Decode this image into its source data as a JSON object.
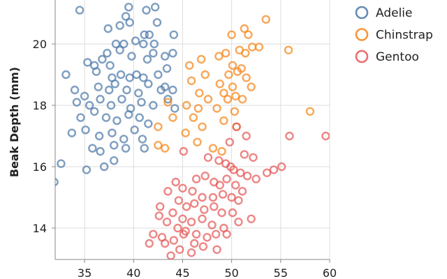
{
  "chart_data": {
    "type": "scatter",
    "title": "",
    "xlabel": "",
    "ylabel": "Beak Depth (mm)",
    "xlim": [
      32,
      60
    ],
    "ylim": [
      13,
      22
    ],
    "x_ticks": [
      35,
      40,
      45,
      50,
      55,
      60
    ],
    "y_ticks": [
      14,
      16,
      18,
      20
    ],
    "grid": true,
    "legend_position": "top-right",
    "series": [
      {
        "name": "Adelie",
        "color": "#4c78a8",
        "points": [
          [
            34.5,
            21.1
          ],
          [
            39.5,
            21.2
          ],
          [
            39.2,
            20.9
          ],
          [
            41.3,
            21.1
          ],
          [
            42.2,
            21.2
          ],
          [
            45.4,
            21.6
          ],
          [
            38.6,
            20.6
          ],
          [
            39.6,
            20.7
          ],
          [
            42.4,
            20.7
          ],
          [
            37.4,
            20.5
          ],
          [
            41.1,
            20.3
          ],
          [
            41.6,
            20.3
          ],
          [
            40.2,
            20.1
          ],
          [
            44.1,
            20.3
          ],
          [
            38.2,
            20.0
          ],
          [
            39.0,
            20.0
          ],
          [
            41.0,
            20.0
          ],
          [
            42.1,
            20.0
          ],
          [
            35.3,
            19.4
          ],
          [
            36.8,
            19.5
          ],
          [
            37.3,
            19.7
          ],
          [
            38.6,
            19.8
          ],
          [
            39.8,
            19.6
          ],
          [
            41.4,
            19.5
          ],
          [
            42.0,
            19.7
          ],
          [
            43.2,
            19.6
          ],
          [
            44.0,
            19.7
          ],
          [
            36.0,
            19.3
          ],
          [
            37.6,
            19.3
          ],
          [
            36.2,
            19.1
          ],
          [
            37.8,
            18.9
          ],
          [
            38.7,
            19.0
          ],
          [
            39.6,
            18.9
          ],
          [
            40.3,
            19.0
          ],
          [
            41.0,
            18.9
          ],
          [
            42.5,
            19.0
          ],
          [
            43.4,
            19.2
          ],
          [
            33.1,
            19.0
          ],
          [
            34.0,
            18.5
          ],
          [
            35.0,
            18.3
          ],
          [
            36.4,
            18.6
          ],
          [
            37.5,
            18.5
          ],
          [
            38.1,
            18.7
          ],
          [
            39.3,
            18.5
          ],
          [
            40.5,
            18.4
          ],
          [
            41.5,
            18.7
          ],
          [
            42.8,
            18.5
          ],
          [
            43.2,
            18.6
          ],
          [
            44.0,
            18.5
          ],
          [
            34.2,
            18.1
          ],
          [
            35.5,
            18.0
          ],
          [
            36.6,
            18.2
          ],
          [
            37.7,
            18.0
          ],
          [
            38.8,
            18.2
          ],
          [
            39.7,
            17.9
          ],
          [
            40.8,
            18.1
          ],
          [
            42.0,
            18.0
          ],
          [
            43.5,
            18.2
          ],
          [
            44.2,
            17.9
          ],
          [
            34.6,
            17.6
          ],
          [
            36.0,
            17.8
          ],
          [
            37.2,
            17.6
          ],
          [
            38.3,
            17.5
          ],
          [
            39.5,
            17.7
          ],
          [
            40.6,
            17.6
          ],
          [
            41.5,
            17.4
          ],
          [
            33.7,
            17.1
          ],
          [
            35.1,
            17.2
          ],
          [
            36.5,
            17.0
          ],
          [
            37.8,
            17.1
          ],
          [
            39.0,
            16.9
          ],
          [
            40.1,
            17.2
          ],
          [
            35.8,
            16.6
          ],
          [
            36.6,
            16.5
          ],
          [
            38.0,
            16.7
          ],
          [
            39.2,
            16.6
          ],
          [
            40.9,
            16.9
          ],
          [
            41.1,
            16.6
          ],
          [
            38.0,
            16.2
          ],
          [
            35.2,
            15.9
          ],
          [
            32.6,
            16.1
          ],
          [
            37.0,
            16.0
          ],
          [
            31.9,
            15.5
          ]
        ]
      },
      {
        "name": "Chinstrap",
        "color": "#f58518",
        "points": [
          [
            51.3,
            20.5
          ],
          [
            53.5,
            20.8
          ],
          [
            50.0,
            20.3
          ],
          [
            51.7,
            20.3
          ],
          [
            52.1,
            19.9
          ],
          [
            52.8,
            19.9
          ],
          [
            55.8,
            19.8
          ],
          [
            49.4,
            19.7
          ],
          [
            50.8,
            19.8
          ],
          [
            46.9,
            19.5
          ],
          [
            48.7,
            19.6
          ],
          [
            51.4,
            19.7
          ],
          [
            45.7,
            19.3
          ],
          [
            50.1,
            19.3
          ],
          [
            51.0,
            19.2
          ],
          [
            47.3,
            19.0
          ],
          [
            49.7,
            19.0
          ],
          [
            50.6,
            19.1
          ],
          [
            51.5,
            18.9
          ],
          [
            45.9,
            18.8
          ],
          [
            48.8,
            18.7
          ],
          [
            50.1,
            18.6
          ],
          [
            52.0,
            18.6
          ],
          [
            46.7,
            18.4
          ],
          [
            49.2,
            18.4
          ],
          [
            50.4,
            18.3
          ],
          [
            51.1,
            18.2
          ],
          [
            47.6,
            18.2
          ],
          [
            49.6,
            18.2
          ],
          [
            43.5,
            18.1
          ],
          [
            45.4,
            18.0
          ],
          [
            46.6,
            17.9
          ],
          [
            48.5,
            17.9
          ],
          [
            50.3,
            17.8
          ],
          [
            58.0,
            17.8
          ],
          [
            44.0,
            17.6
          ],
          [
            46.1,
            17.6
          ],
          [
            49.2,
            17.5
          ],
          [
            42.5,
            17.3
          ],
          [
            47.0,
            17.3
          ],
          [
            50.5,
            17.3
          ],
          [
            45.3,
            17.1
          ],
          [
            46.5,
            16.8
          ],
          [
            48.1,
            16.6
          ],
          [
            49.0,
            16.5
          ],
          [
            43.2,
            16.6
          ],
          [
            42.5,
            16.7
          ]
        ]
      },
      {
        "name": "Gentoo",
        "color": "#e45756",
        "points": [
          [
            50.5,
            17.3
          ],
          [
            51.5,
            17.0
          ],
          [
            55.9,
            17.0
          ],
          [
            59.6,
            17.0
          ],
          [
            49.8,
            16.8
          ],
          [
            51.3,
            16.4
          ],
          [
            52.2,
            16.3
          ],
          [
            45.1,
            16.5
          ],
          [
            47.6,
            16.3
          ],
          [
            48.7,
            16.2
          ],
          [
            49.4,
            16.1
          ],
          [
            49.9,
            16.0
          ],
          [
            50.2,
            15.9
          ],
          [
            50.9,
            15.8
          ],
          [
            51.6,
            15.7
          ],
          [
            53.6,
            15.8
          ],
          [
            54.3,
            15.9
          ],
          [
            55.1,
            16.0
          ],
          [
            52.5,
            15.6
          ],
          [
            46.4,
            15.6
          ],
          [
            47.3,
            15.7
          ],
          [
            48.2,
            15.5
          ],
          [
            48.8,
            15.4
          ],
          [
            49.5,
            15.6
          ],
          [
            50.4,
            15.4
          ],
          [
            44.3,
            15.5
          ],
          [
            45.0,
            15.3
          ],
          [
            46.0,
            15.2
          ],
          [
            47.0,
            15.0
          ],
          [
            48.1,
            15.0
          ],
          [
            49.1,
            15.1
          ],
          [
            50.0,
            15.0
          ],
          [
            50.7,
            14.9
          ],
          [
            51.1,
            15.2
          ],
          [
            43.5,
            15.2
          ],
          [
            44.6,
            14.9
          ],
          [
            45.4,
            14.7
          ],
          [
            46.2,
            14.8
          ],
          [
            47.2,
            14.6
          ],
          [
            48.2,
            14.7
          ],
          [
            49.0,
            14.5
          ],
          [
            50.1,
            14.5
          ],
          [
            50.7,
            14.2
          ],
          [
            52.0,
            14.3
          ],
          [
            42.7,
            14.7
          ],
          [
            44.0,
            14.5
          ],
          [
            45.0,
            14.3
          ],
          [
            45.9,
            14.2
          ],
          [
            47.0,
            14.3
          ],
          [
            48.0,
            14.1
          ],
          [
            49.2,
            14.0
          ],
          [
            43.4,
            14.2
          ],
          [
            44.5,
            14.0
          ],
          [
            45.3,
            13.9
          ],
          [
            46.4,
            13.8
          ],
          [
            47.5,
            13.7
          ],
          [
            48.4,
            13.8
          ],
          [
            49.5,
            13.8
          ],
          [
            42.0,
            13.8
          ],
          [
            42.9,
            13.7
          ],
          [
            44.1,
            13.6
          ],
          [
            45.1,
            13.8
          ],
          [
            46.2,
            13.5
          ],
          [
            47.1,
            13.4
          ],
          [
            48.5,
            13.3
          ],
          [
            43.2,
            13.5
          ],
          [
            44.7,
            13.3
          ],
          [
            45.9,
            13.2
          ],
          [
            43.8,
            13.1
          ],
          [
            41.6,
            13.5
          ],
          [
            42.6,
            14.4
          ]
        ]
      }
    ]
  }
}
